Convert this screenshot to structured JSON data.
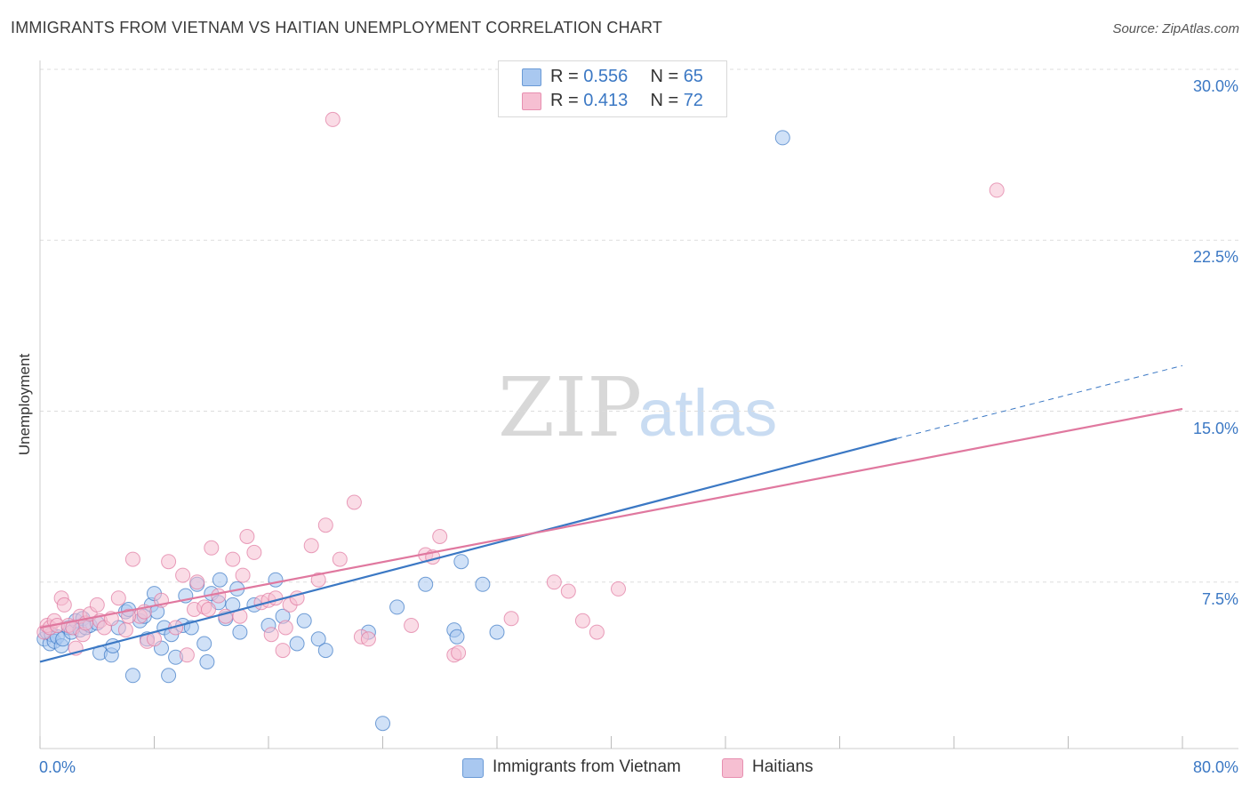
{
  "header": {
    "title": "IMMIGRANTS FROM VIETNAM VS HAITIAN UNEMPLOYMENT CORRELATION CHART",
    "source": "Source: ZipAtlas.com"
  },
  "watermark": {
    "zip": "ZIP",
    "atlas": "atlas"
  },
  "legend": {
    "r_label": "R =",
    "n_label": "N =",
    "series": [
      {
        "r": "0.556",
        "n": "65"
      },
      {
        "r": "0.413",
        "n": "72"
      }
    ]
  },
  "chart_data": {
    "type": "scatter",
    "title": "IMMIGRANTS FROM VIETNAM VS HAITIAN UNEMPLOYMENT CORRELATION CHART",
    "xlabel": "",
    "ylabel": "Unemployment",
    "xlim": [
      0,
      80
    ],
    "ylim": [
      0,
      30.5
    ],
    "x_tick_labels": [
      "0.0%",
      "80.0%"
    ],
    "y_ticks": [
      7.5,
      15.0,
      22.5,
      30.0
    ],
    "y_tick_labels": [
      "7.5%",
      "15.0%",
      "22.5%",
      "30.0%"
    ],
    "grid": true,
    "legend_placement": "top-center",
    "series": [
      {
        "name": "Immigrants from Vietnam",
        "color": "#3b78c4",
        "fill": "#a9c8f0",
        "trend": {
          "x0": 0,
          "y0": 4.0,
          "x1": 60,
          "y1": 13.8,
          "dashed_to_x": 80,
          "dashed_to_y": 17.0
        },
        "points": [
          [
            0.3,
            5.0
          ],
          [
            0.5,
            5.3
          ],
          [
            0.7,
            4.8
          ],
          [
            0.8,
            5.2
          ],
          [
            1.0,
            4.9
          ],
          [
            1.2,
            5.1
          ],
          [
            1.5,
            4.7
          ],
          [
            1.6,
            5.0
          ],
          [
            2.0,
            5.5
          ],
          [
            2.2,
            5.3
          ],
          [
            2.5,
            5.8
          ],
          [
            2.8,
            5.4
          ],
          [
            3.0,
            5.9
          ],
          [
            3.2,
            5.5
          ],
          [
            3.5,
            5.6
          ],
          [
            4.0,
            5.7
          ],
          [
            4.2,
            4.4
          ],
          [
            5.0,
            4.3
          ],
          [
            5.1,
            4.7
          ],
          [
            5.5,
            5.5
          ],
          [
            6.0,
            6.2
          ],
          [
            6.2,
            6.3
          ],
          [
            6.5,
            3.4
          ],
          [
            7.0,
            5.8
          ],
          [
            7.3,
            6.0
          ],
          [
            7.5,
            5.0
          ],
          [
            7.8,
            6.5
          ],
          [
            8.0,
            7.0
          ],
          [
            8.2,
            6.2
          ],
          [
            8.5,
            4.6
          ],
          [
            8.7,
            5.5
          ],
          [
            9.0,
            3.4
          ],
          [
            9.2,
            5.2
          ],
          [
            9.5,
            4.2
          ],
          [
            10.0,
            5.6
          ],
          [
            10.2,
            6.9
          ],
          [
            10.6,
            5.5
          ],
          [
            11.0,
            7.4
          ],
          [
            11.5,
            4.8
          ],
          [
            11.7,
            4.0
          ],
          [
            12.0,
            7.0
          ],
          [
            12.5,
            6.6
          ],
          [
            12.6,
            7.6
          ],
          [
            13.0,
            5.9
          ],
          [
            13.5,
            6.5
          ],
          [
            13.8,
            7.2
          ],
          [
            14.0,
            5.3
          ],
          [
            15.0,
            6.5
          ],
          [
            16.0,
            5.6
          ],
          [
            16.5,
            7.6
          ],
          [
            17.0,
            6.0
          ],
          [
            18.0,
            4.8
          ],
          [
            18.5,
            5.8
          ],
          [
            19.5,
            5.0
          ],
          [
            20.0,
            4.5
          ],
          [
            23.0,
            5.3
          ],
          [
            24.0,
            1.3
          ],
          [
            25.0,
            6.4
          ],
          [
            27.0,
            7.4
          ],
          [
            29.0,
            5.4
          ],
          [
            29.2,
            5.1
          ],
          [
            29.5,
            8.4
          ],
          [
            31.0,
            7.4
          ],
          [
            32.0,
            5.3
          ],
          [
            52.0,
            27.0
          ]
        ]
      },
      {
        "name": "Haitians",
        "color": "#e0789f",
        "fill": "#f6bfd2",
        "trend": {
          "x0": 0,
          "y0": 5.5,
          "x1": 80,
          "y1": 15.1
        },
        "points": [
          [
            0.3,
            5.3
          ],
          [
            0.5,
            5.6
          ],
          [
            0.7,
            5.5
          ],
          [
            1.0,
            5.8
          ],
          [
            1.2,
            5.6
          ],
          [
            1.5,
            6.8
          ],
          [
            1.7,
            6.5
          ],
          [
            2.0,
            5.6
          ],
          [
            2.3,
            5.5
          ],
          [
            2.5,
            4.6
          ],
          [
            2.8,
            6.0
          ],
          [
            3.0,
            5.2
          ],
          [
            3.2,
            5.7
          ],
          [
            3.5,
            6.1
          ],
          [
            4.0,
            6.5
          ],
          [
            4.2,
            5.8
          ],
          [
            4.5,
            5.5
          ],
          [
            5.0,
            5.9
          ],
          [
            5.5,
            6.8
          ],
          [
            6.0,
            5.4
          ],
          [
            6.5,
            8.5
          ],
          [
            7.0,
            6.0
          ],
          [
            7.3,
            6.2
          ],
          [
            7.5,
            4.9
          ],
          [
            8.0,
            5.0
          ],
          [
            8.5,
            6.7
          ],
          [
            9.0,
            8.4
          ],
          [
            9.5,
            5.5
          ],
          [
            10.0,
            7.8
          ],
          [
            10.3,
            4.3
          ],
          [
            10.8,
            6.3
          ],
          [
            11.0,
            7.5
          ],
          [
            11.5,
            6.4
          ],
          [
            11.8,
            6.3
          ],
          [
            12.0,
            9.0
          ],
          [
            12.5,
            6.9
          ],
          [
            13.0,
            6.0
          ],
          [
            13.5,
            8.5
          ],
          [
            14.0,
            6.0
          ],
          [
            14.2,
            7.8
          ],
          [
            14.5,
            9.5
          ],
          [
            15.0,
            8.8
          ],
          [
            15.5,
            6.6
          ],
          [
            16.0,
            6.7
          ],
          [
            16.2,
            5.2
          ],
          [
            16.5,
            6.8
          ],
          [
            17.0,
            4.5
          ],
          [
            17.2,
            5.5
          ],
          [
            17.5,
            6.5
          ],
          [
            18.0,
            6.8
          ],
          [
            19.0,
            9.1
          ],
          [
            19.5,
            7.6
          ],
          [
            20.0,
            10.0
          ],
          [
            20.5,
            27.8
          ],
          [
            21.0,
            8.5
          ],
          [
            22.0,
            11.0
          ],
          [
            22.5,
            5.1
          ],
          [
            23.0,
            5.0
          ],
          [
            26.0,
            5.6
          ],
          [
            27.0,
            8.7
          ],
          [
            28.0,
            9.5
          ],
          [
            29.0,
            4.3
          ],
          [
            29.3,
            4.4
          ],
          [
            33.0,
            5.9
          ],
          [
            36.0,
            7.5
          ],
          [
            37.0,
            7.1
          ],
          [
            38.0,
            5.8
          ],
          [
            39.0,
            5.3
          ],
          [
            40.5,
            7.2
          ],
          [
            67.0,
            24.7
          ],
          [
            27.5,
            8.6
          ],
          [
            6.2,
            6.0
          ]
        ]
      }
    ]
  }
}
